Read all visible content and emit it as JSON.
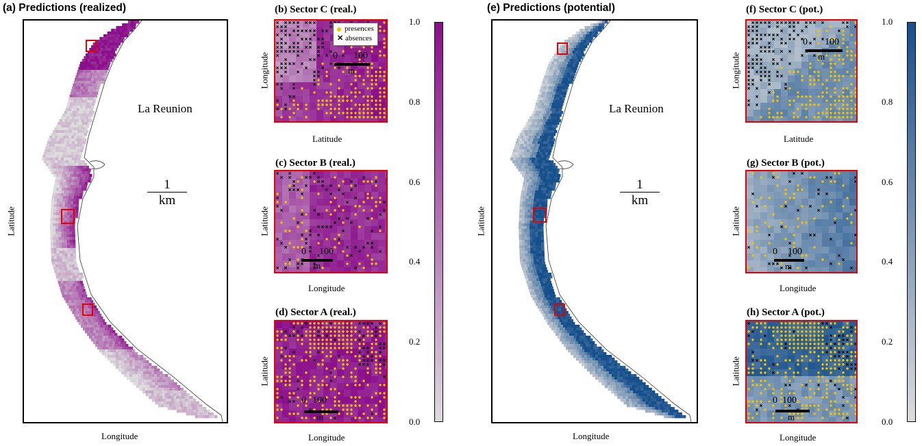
{
  "colors": {
    "realized_high": "#8b0e8b",
    "realized_low": "#dcdcdc",
    "potential_high": "#154f8c",
    "potential_low": "#dcdcdc",
    "sector_frame": "#e60000",
    "presence": "#f2c200",
    "absence": "#000000"
  },
  "panels": {
    "a": {
      "title": "(a) Predictions (realized)",
      "xlabel": "Longitude",
      "ylabel": "Latitude",
      "place": "La Reunion",
      "scale_value": "1",
      "scale_unit": "km"
    },
    "b": {
      "title": "(b) Sector C (real.)",
      "xlabel": "Latitude",
      "ylabel": "Longitude",
      "scale_zero": "0",
      "scale_end": "100",
      "scale_unit": "m"
    },
    "c": {
      "title": "(c) Sector B (real.)",
      "xlabel": "Longitude",
      "ylabel": "Latitude",
      "scale_zero": "0",
      "scale_end": "100",
      "scale_unit": "m"
    },
    "d": {
      "title": "(d) Sector A (real.)",
      "xlabel": "Longitude",
      "ylabel": "Latitude",
      "scale_zero": "0",
      "scale_end": "100",
      "scale_unit": "m"
    },
    "e": {
      "title": "(e) Predictions (potential)",
      "xlabel": "Longitude",
      "ylabel": "Latitude",
      "place": "La Reunion",
      "scale_value": "1",
      "scale_unit": "km"
    },
    "f": {
      "title": "(f) Sector C (pot.)",
      "xlabel": "Latitude",
      "ylabel": "Longitude",
      "scale_zero": "0",
      "scale_end": "100",
      "scale_unit": "m"
    },
    "g": {
      "title": "(g) Sector B (pot.)",
      "xlabel": "Longitude",
      "ylabel": "Latitude",
      "scale_zero": "0",
      "scale_end": "100",
      "scale_unit": "m"
    },
    "h": {
      "title": "(h) Sector A (pot.)",
      "xlabel": "Longitude",
      "ylabel": "Latitude",
      "scale_zero": "0",
      "scale_end": "100",
      "scale_unit": "m"
    }
  },
  "legend": {
    "presences": "presences",
    "absences": "absences"
  },
  "colorbar": {
    "ticks": [
      "1.0",
      "0.8",
      "0.6",
      "0.4",
      "0.2",
      "0.0"
    ],
    "min": 0,
    "max": 1
  }
}
